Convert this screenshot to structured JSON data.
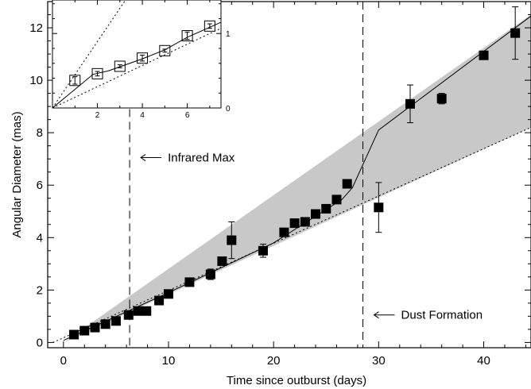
{
  "chart_data": [
    {
      "type": "scatter",
      "panel": "main",
      "xlabel": "Time since outburst (days)",
      "ylabel": "Angular Diameter (mas)",
      "xlim": [
        -1.5,
        44.5
      ],
      "ylim": [
        -0.2,
        13.0
      ],
      "xticks": [
        0,
        10,
        20,
        30,
        40
      ],
      "yticks": [
        0,
        2,
        4,
        6,
        8,
        10,
        12
      ],
      "grid": false,
      "marker": "filled-square",
      "series": [
        {
          "points": [
            {
              "x": 1,
              "y": 0.3,
              "err": 0.05
            },
            {
              "x": 2,
              "y": 0.45,
              "err": 0.05
            },
            {
              "x": 3,
              "y": 0.57,
              "err": 0.05
            },
            {
              "x": 4,
              "y": 0.7,
              "err": 0.05
            },
            {
              "x": 5,
              "y": 0.82,
              "err": 0.05
            },
            {
              "x": 6.2,
              "y": 1.05,
              "err": 0.05
            },
            {
              "x": 7.1,
              "y": 1.2,
              "err": 0.05
            },
            {
              "x": 7.9,
              "y": 1.2,
              "err": 0.05
            },
            {
              "x": 9.1,
              "y": 1.6,
              "err": 0.05
            },
            {
              "x": 10.0,
              "y": 1.85,
              "err": 0.05
            },
            {
              "x": 12.0,
              "y": 2.3,
              "err": 0.05
            },
            {
              "x": 14.0,
              "y": 2.6,
              "err": 0.2
            },
            {
              "x": 15.1,
              "y": 3.1,
              "err": 0.05
            },
            {
              "x": 16.0,
              "y": 3.9,
              "err": 0.7
            },
            {
              "x": 19.0,
              "y": 3.5,
              "err": 0.25
            },
            {
              "x": 21.0,
              "y": 4.2,
              "err": 0.15
            },
            {
              "x": 22.0,
              "y": 4.55,
              "err": 0.05
            },
            {
              "x": 23.0,
              "y": 4.6,
              "err": 0.05
            },
            {
              "x": 24.0,
              "y": 4.9,
              "err": 0.05
            },
            {
              "x": 25.0,
              "y": 5.1,
              "err": 0.05
            },
            {
              "x": 26.0,
              "y": 5.45,
              "err": 0.05
            },
            {
              "x": 27.0,
              "y": 6.05,
              "err": 0.05
            },
            {
              "x": 30.0,
              "y": 5.15,
              "err": 0.95
            },
            {
              "x": 33.0,
              "y": 9.1,
              "err": 0.72
            },
            {
              "x": 36.0,
              "y": 9.3,
              "err": 0.2
            },
            {
              "x": 40.0,
              "y": 10.95,
              "err": 0.05
            },
            {
              "x": 43.0,
              "y": 11.8,
              "err": 1.0
            }
          ]
        }
      ],
      "solid_curve": [
        [
          0,
          0.08
        ],
        [
          10,
          1.9
        ],
        [
          20,
          3.8
        ],
        [
          26.5,
          5.45
        ],
        [
          27.5,
          5.9
        ],
        [
          30,
          8.1
        ],
        [
          44.5,
          12.45
        ]
      ],
      "dotted_line": [
        [
          -1,
          0
        ],
        [
          44.5,
          8.2
        ]
      ],
      "shaded_band": {
        "lower": [
          [
            0,
            0
          ],
          [
            44.5,
            8.2
          ]
        ],
        "upper": [
          [
            0,
            0
          ],
          [
            44.5,
            12.5
          ]
        ],
        "color": "#c8c8c8"
      },
      "vertical_lines": [
        {
          "x": 6.3,
          "label": "Infrared Max",
          "label_at_y": 7.05
        },
        {
          "x": 28.5,
          "label": "Dust Formation",
          "label_at_y": 1.05
        }
      ]
    },
    {
      "type": "scatter",
      "panel": "inset",
      "xlim": [
        0,
        7.5
      ],
      "ylim": [
        0,
        1.45
      ],
      "xticks": [
        2,
        4,
        6
      ],
      "yticks": [
        0,
        1
      ],
      "marker": "open-square",
      "series": [
        {
          "points": [
            {
              "x": 1,
              "y": 0.37,
              "err": 0.05
            },
            {
              "x": 2,
              "y": 0.46,
              "err": 0.03
            },
            {
              "x": 3,
              "y": 0.56,
              "err": 0.02
            },
            {
              "x": 4,
              "y": 0.67,
              "err": 0.04
            },
            {
              "x": 5,
              "y": 0.77,
              "err": 0.02
            },
            {
              "x": 6,
              "y": 0.97,
              "err": 0.05
            },
            {
              "x": 7,
              "y": 1.1,
              "err": 0.03
            }
          ]
        }
      ],
      "solid_curve": [
        [
          0,
          0
        ],
        [
          1.8,
          0.45
        ],
        [
          2.5,
          0.5
        ],
        [
          4,
          0.66
        ],
        [
          5,
          0.78
        ],
        [
          6,
          0.95
        ],
        [
          7.5,
          1.15
        ]
      ],
      "dotted_lines": [
        [
          [
            0,
            0
          ],
          [
            7.5,
            1.07
          ]
        ],
        [
          [
            0,
            0
          ],
          [
            3.25,
            1.45
          ]
        ]
      ]
    }
  ]
}
